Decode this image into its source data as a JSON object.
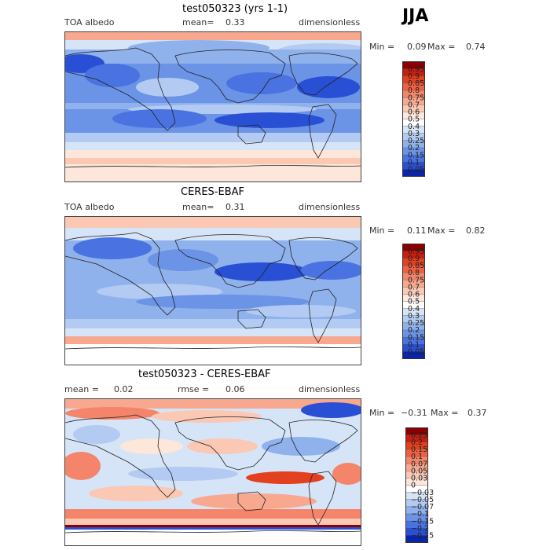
{
  "season": "JJA",
  "panels": [
    {
      "title": "test050323 (yrs 1-1)",
      "left_label": "TOA albedo",
      "mid_label": "mean=",
      "mid_value": "0.33",
      "right_label": "dimensionless",
      "min_label": "Min =",
      "min_value": "0.09",
      "max_label": "Max =",
      "max_value": "0.74"
    },
    {
      "title": "CERES-EBAF",
      "left_label": "TOA albedo",
      "mid_label": "mean=",
      "mid_value": "0.31",
      "right_label": "dimensionless",
      "min_label": "Min =",
      "min_value": "0.11",
      "max_label": "Max =",
      "max_value": "0.82"
    },
    {
      "title": "test050323 - CERES-EBAF",
      "left_label": "mean =",
      "left_value": "0.02",
      "mid_label": "rmse =",
      "mid_value": "0.06",
      "right_label": "dimensionless",
      "min_label": "Min =",
      "min_value": "−0.31",
      "max_label": "Max =",
      "max_value": "0.37"
    }
  ],
  "chart_data": [
    {
      "type": "heatmap",
      "title": "test050323 (yrs 1-1)",
      "variable": "TOA albedo",
      "units": "dimensionless",
      "mean": 0.33,
      "min": 0.09,
      "max": 0.74,
      "colorbar_levels": [
        "0.95",
        "0.9",
        "0.85",
        "0.8",
        "0.75",
        "0.7",
        "0.6",
        "0.5",
        "0.4",
        "0.3",
        "0.25",
        "0.2",
        "0.15",
        "0.1",
        "0.05"
      ],
      "colorbar_colors": [
        "#8b0000",
        "#c81e10",
        "#e2401f",
        "#ef6040",
        "#f4856a",
        "#f8a88f",
        "#fac8b3",
        "#fde6da",
        "#ffffff",
        "#d6e4f7",
        "#b3cbf2",
        "#8fb1ec",
        "#6b93e6",
        "#4a72e0",
        "#2950d4",
        "#0a25a8"
      ]
    },
    {
      "type": "heatmap",
      "title": "CERES-EBAF",
      "variable": "TOA albedo",
      "units": "dimensionless",
      "mean": 0.31,
      "min": 0.11,
      "max": 0.82,
      "colorbar_levels": [
        "0.95",
        "0.9",
        "0.85",
        "0.8",
        "0.75",
        "0.7",
        "0.6",
        "0.5",
        "0.4",
        "0.3",
        "0.25",
        "0.2",
        "0.15",
        "0.1",
        "0.05"
      ],
      "colorbar_colors": [
        "#8b0000",
        "#c81e10",
        "#e2401f",
        "#ef6040",
        "#f4856a",
        "#f8a88f",
        "#fac8b3",
        "#fde6da",
        "#ffffff",
        "#d6e4f7",
        "#b3cbf2",
        "#8fb1ec",
        "#6b93e6",
        "#4a72e0",
        "#2950d4",
        "#0a25a8"
      ]
    },
    {
      "type": "heatmap",
      "title": "test050323 - CERES-EBAF",
      "units": "dimensionless",
      "mean": 0.02,
      "rmse": 0.06,
      "min": -0.31,
      "max": 0.37,
      "colorbar_levels": [
        "0.25",
        "0.2",
        "0.15",
        "0.1",
        "0.07",
        "0.05",
        "0.03",
        "0",
        "−0.03",
        "−0.05",
        "−0.07",
        "−0.1",
        "−0.15",
        "−0.2",
        "−0.25"
      ],
      "colorbar_colors": [
        "#8b0000",
        "#c81e10",
        "#e2401f",
        "#ef6040",
        "#f4856a",
        "#f8a88f",
        "#fac8b3",
        "#fde6da",
        "#ffffff",
        "#d6e4f7",
        "#b3cbf2",
        "#8fb1ec",
        "#6b93e6",
        "#4a72e0",
        "#2950d4",
        "#0a25a8"
      ]
    }
  ]
}
